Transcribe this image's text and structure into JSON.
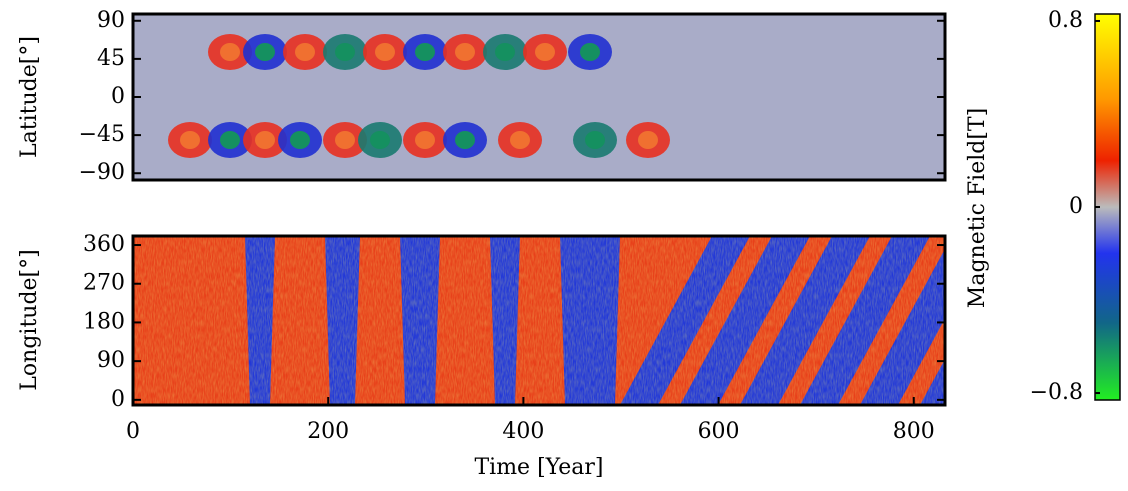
{
  "chart_data": [
    {
      "type": "heatmap",
      "ylabel": "Latitude[°]",
      "ylim": [
        -98,
        98
      ],
      "yticks": [
        {
          "value": -90,
          "label": "−90"
        },
        {
          "value": -45,
          "label": "−45"
        },
        0,
        45,
        90
      ]
    },
    {
      "type": "heatmap",
      "ylabel": "Longitude[°]",
      "xlabel": "Time [Year]",
      "xlim": [
        0,
        832
      ],
      "xticks": [
        0,
        200,
        400,
        600,
        800
      ],
      "ylim": [
        -12,
        381
      ],
      "yticks": [
        0,
        90,
        180,
        270,
        360
      ]
    },
    {
      "type": "colorbar",
      "label": "Magnetic Field[T]",
      "ylim": [
        -0.83,
        0.83
      ],
      "yticks": [
        {
          "value": -0.8,
          "label": "−0.8"
        },
        0,
        0.8
      ]
    }
  ]
}
